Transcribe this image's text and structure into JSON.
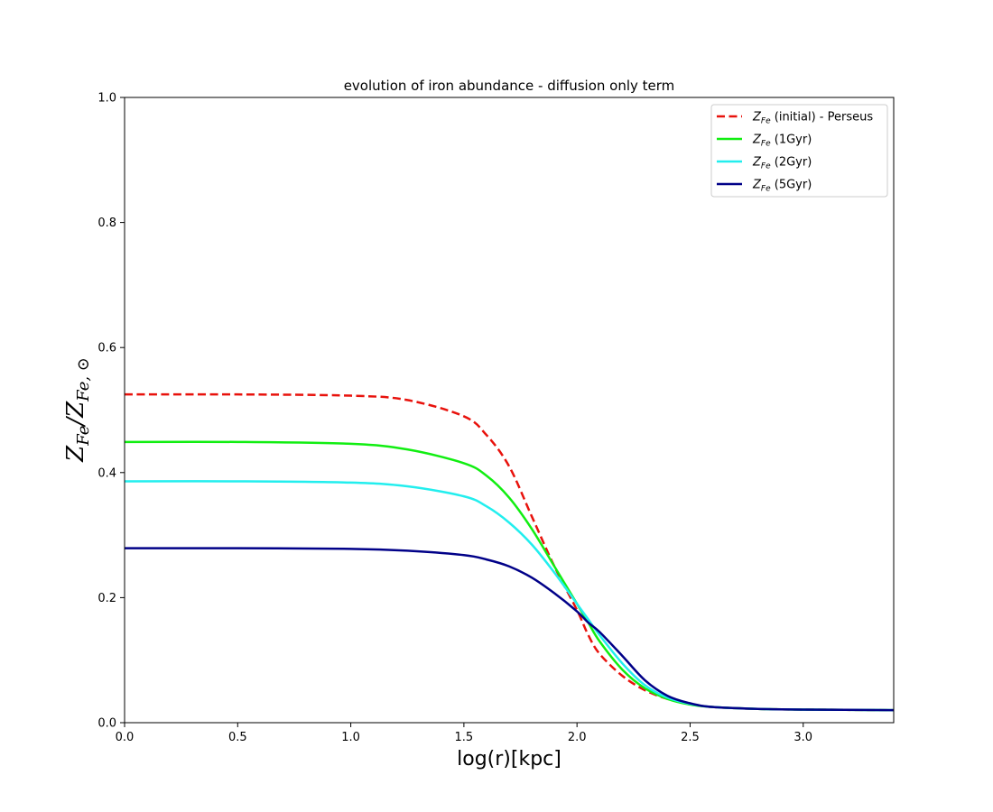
{
  "chart_data": {
    "type": "line",
    "title": "evolution of iron abundance - diffusion only term",
    "xlabel": "log(r)[kpc]",
    "ylabel": "Z_Fe/Z_Fe,⊙",
    "xlim": [
      0,
      3.4
    ],
    "ylim": [
      0,
      1.0
    ],
    "xticks": [
      0.0,
      0.5,
      1.0,
      1.5,
      2.0,
      2.5,
      3.0
    ],
    "xtick_labels": [
      "0.0",
      "0.5",
      "1.0",
      "1.5",
      "2.0",
      "2.5",
      "3.0"
    ],
    "yticks": [
      0.0,
      0.2,
      0.4,
      0.6,
      0.8,
      1.0
    ],
    "ytick_labels": [
      "0.0",
      "0.2",
      "0.4",
      "0.6",
      "0.8",
      "1.0"
    ],
    "grid": false,
    "legend_position": "top-right",
    "x": [
      0.0,
      0.5,
      1.0,
      1.25,
      1.5,
      1.6,
      1.7,
      1.8,
      1.9,
      2.0,
      2.05,
      2.1,
      2.2,
      2.3,
      2.4,
      2.5,
      2.6,
      2.8,
      3.0,
      3.4
    ],
    "series": [
      {
        "name": "(initial) - Perseus",
        "style": "dashed",
        "color": "#e8120c",
        "values": [
          0.525,
          0.525,
          0.523,
          0.516,
          0.49,
          0.46,
          0.41,
          0.33,
          0.25,
          0.18,
          0.14,
          0.11,
          0.075,
          0.052,
          0.038,
          0.03,
          0.025,
          0.022,
          0.021,
          0.02
        ]
      },
      {
        "name": "(1Gyr)",
        "style": "solid",
        "color": "#11ee11",
        "values": [
          0.449,
          0.449,
          0.446,
          0.437,
          0.415,
          0.395,
          0.36,
          0.31,
          0.25,
          0.19,
          0.16,
          0.13,
          0.085,
          0.055,
          0.038,
          0.029,
          0.025,
          0.022,
          0.021,
          0.02
        ]
      },
      {
        "name": "(2Gyr)",
        "style": "solid",
        "color": "#22eeee",
        "values": [
          0.386,
          0.386,
          0.384,
          0.378,
          0.362,
          0.346,
          0.32,
          0.285,
          0.24,
          0.19,
          0.165,
          0.14,
          0.095,
          0.06,
          0.04,
          0.03,
          0.025,
          0.022,
          0.021,
          0.02
        ]
      },
      {
        "name": "(5Gyr)",
        "style": "solid",
        "color": "#000088",
        "values": [
          0.279,
          0.279,
          0.278,
          0.275,
          0.268,
          0.261,
          0.25,
          0.232,
          0.207,
          0.178,
          0.16,
          0.145,
          0.107,
          0.068,
          0.043,
          0.031,
          0.025,
          0.022,
          0.021,
          0.02
        ]
      }
    ]
  }
}
